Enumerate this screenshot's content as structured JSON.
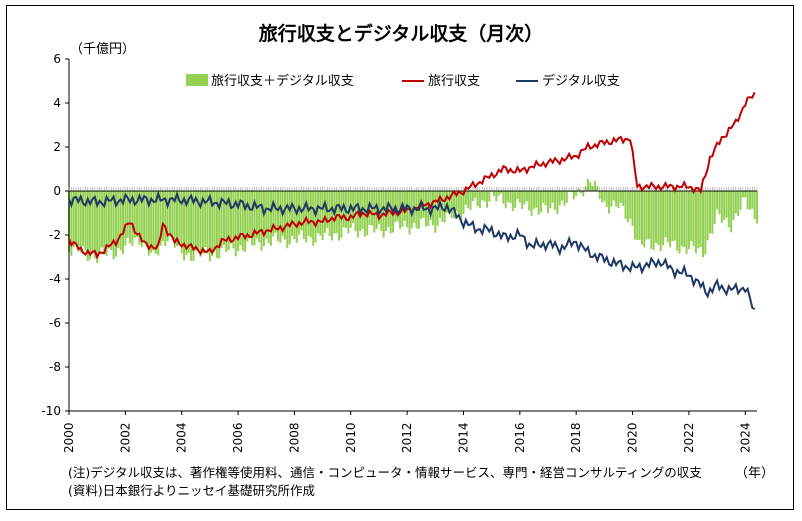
{
  "chart_data": {
    "type": "bar+line",
    "title": "旅行収支とデジタル収支（月次）",
    "unit_label": "（千億円）",
    "x_unit_label": "（年）",
    "ylim": [
      -10,
      6
    ],
    "yticks": [
      "6",
      "4",
      "2",
      "0",
      "-2",
      "-4",
      "-6",
      "-8",
      "-10"
    ],
    "ytick_values": [
      6,
      4,
      2,
      0,
      -2,
      -4,
      -6,
      -8,
      -10
    ],
    "xlim": [
      "2000-01",
      "2024-06"
    ],
    "xticks": [
      "2000",
      "2002",
      "2004",
      "2006",
      "2008",
      "2010",
      "2012",
      "2014",
      "2016",
      "2018",
      "2020",
      "2022",
      "2024"
    ],
    "legend_placement": "top",
    "series": [
      {
        "name": "旅行収支＋デジタル収支",
        "type": "bar",
        "color": "#92d050",
        "points": [
          [
            "2000-01",
            -2.6
          ],
          [
            "2001-01",
            -3.0
          ],
          [
            "2002-01",
            -2.6
          ],
          [
            "2002-07",
            -2.1
          ],
          [
            "2003-01",
            -3.1
          ],
          [
            "2003-07",
            -2.0
          ],
          [
            "2004-01",
            -2.9
          ],
          [
            "2005-01",
            -2.9
          ],
          [
            "2006-01",
            -2.6
          ],
          [
            "2007-01",
            -2.3
          ],
          [
            "2008-01",
            -2.2
          ],
          [
            "2009-01",
            -2.1
          ],
          [
            "2010-01",
            -1.8
          ],
          [
            "2011-01",
            -1.8
          ],
          [
            "2012-01",
            -1.6
          ],
          [
            "2013-01",
            -1.5
          ],
          [
            "2014-01",
            -0.9
          ],
          [
            "2015-01",
            -0.3
          ],
          [
            "2016-01",
            -0.7
          ],
          [
            "2017-01",
            -0.9
          ],
          [
            "2018-01",
            -0.2
          ],
          [
            "2018-07",
            0.5
          ],
          [
            "2019-01",
            -0.6
          ],
          [
            "2019-07",
            -0.7
          ],
          [
            "2020-01",
            -1.5
          ],
          [
            "2020-04",
            -2.5
          ],
          [
            "2021-01",
            -2.4
          ],
          [
            "2022-01",
            -2.6
          ],
          [
            "2022-07",
            -2.8
          ],
          [
            "2023-01",
            -1.2
          ],
          [
            "2023-07",
            -1.5
          ],
          [
            "2024-01",
            -0.5
          ],
          [
            "2024-05",
            -1.1
          ]
        ]
      },
      {
        "name": "旅行収支",
        "type": "line",
        "color": "#c00000",
        "points": [
          [
            "2000-01",
            -2.2
          ],
          [
            "2000-06",
            -2.7
          ],
          [
            "2001-01",
            -2.9
          ],
          [
            "2001-09",
            -2.3
          ],
          [
            "2002-03",
            -1.4
          ],
          [
            "2002-09",
            -2.4
          ],
          [
            "2003-03",
            -2.6
          ],
          [
            "2003-05",
            -1.5
          ],
          [
            "2003-10",
            -2.3
          ],
          [
            "2004-06",
            -2.6
          ],
          [
            "2005-01",
            -2.8
          ],
          [
            "2005-06",
            -2.3
          ],
          [
            "2006-01",
            -2.1
          ],
          [
            "2006-06",
            -2.0
          ],
          [
            "2007-01",
            -1.8
          ],
          [
            "2007-06",
            -1.7
          ],
          [
            "2008-01",
            -1.5
          ],
          [
            "2008-06",
            -1.4
          ],
          [
            "2009-01",
            -1.4
          ],
          [
            "2009-06",
            -1.2
          ],
          [
            "2010-01",
            -1.2
          ],
          [
            "2010-06",
            -1.0
          ],
          [
            "2011-01",
            -1.1
          ],
          [
            "2011-06",
            -1.0
          ],
          [
            "2012-01",
            -0.9
          ],
          [
            "2012-06",
            -0.7
          ],
          [
            "2013-01",
            -0.5
          ],
          [
            "2013-06",
            -0.3
          ],
          [
            "2014-01",
            0.0
          ],
          [
            "2014-06",
            0.3
          ],
          [
            "2015-01",
            0.7
          ],
          [
            "2015-06",
            1.0
          ],
          [
            "2016-01",
            0.9
          ],
          [
            "2016-06",
            1.1
          ],
          [
            "2017-01",
            1.3
          ],
          [
            "2017-06",
            1.4
          ],
          [
            "2018-01",
            1.6
          ],
          [
            "2018-06",
            2.0
          ],
          [
            "2019-01",
            2.2
          ],
          [
            "2019-06",
            2.3
          ],
          [
            "2019-12",
            2.4
          ],
          [
            "2020-03",
            0.2
          ],
          [
            "2020-12",
            0.2
          ],
          [
            "2021-06",
            0.2
          ],
          [
            "2022-01",
            0.2
          ],
          [
            "2022-06",
            0.0
          ],
          [
            "2022-10",
            1.5
          ],
          [
            "2023-03",
            2.4
          ],
          [
            "2023-09",
            3.1
          ],
          [
            "2024-01",
            4.0
          ],
          [
            "2024-05",
            4.4
          ]
        ]
      },
      {
        "name": "デジタル収支",
        "type": "line",
        "color": "#1f3864",
        "points": [
          [
            "2000-01",
            -0.4
          ],
          [
            "2001-01",
            -0.5
          ],
          [
            "2002-01",
            -0.4
          ],
          [
            "2003-01",
            -0.4
          ],
          [
            "2004-01",
            -0.4
          ],
          [
            "2005-01",
            -0.5
          ],
          [
            "2006-01",
            -0.6
          ],
          [
            "2007-01",
            -0.8
          ],
          [
            "2008-01",
            -0.8
          ],
          [
            "2009-01",
            -0.8
          ],
          [
            "2010-01",
            -0.8
          ],
          [
            "2011-01",
            -0.8
          ],
          [
            "2012-01",
            -0.8
          ],
          [
            "2013-01",
            -0.8
          ],
          [
            "2013-06",
            -0.7
          ],
          [
            "2014-01",
            -1.4
          ],
          [
            "2014-06",
            -1.7
          ],
          [
            "2015-01",
            -1.8
          ],
          [
            "2015-06",
            -2.1
          ],
          [
            "2016-01",
            -2.0
          ],
          [
            "2016-06",
            -2.5
          ],
          [
            "2017-01",
            -2.4
          ],
          [
            "2017-06",
            -2.6
          ],
          [
            "2018-01",
            -2.3
          ],
          [
            "2018-06",
            -2.8
          ],
          [
            "2019-01",
            -3.1
          ],
          [
            "2019-06",
            -3.3
          ],
          [
            "2020-01",
            -3.5
          ],
          [
            "2020-06",
            -3.4
          ],
          [
            "2021-01",
            -3.2
          ],
          [
            "2021-06",
            -3.6
          ],
          [
            "2022-01",
            -3.8
          ],
          [
            "2022-06",
            -4.3
          ],
          [
            "2022-09",
            -4.6
          ],
          [
            "2023-01",
            -4.3
          ],
          [
            "2023-06",
            -4.5
          ],
          [
            "2024-01",
            -4.4
          ],
          [
            "2024-05",
            -5.5
          ]
        ]
      }
    ]
  },
  "notes": [
    "(注)デジタル収支は、著作権等使用料、通信・コンピュータ・情報サービス、専門・経営コンサルティングの収支",
    "(資料)日本銀行よりニッセイ基礎研究所作成"
  ]
}
